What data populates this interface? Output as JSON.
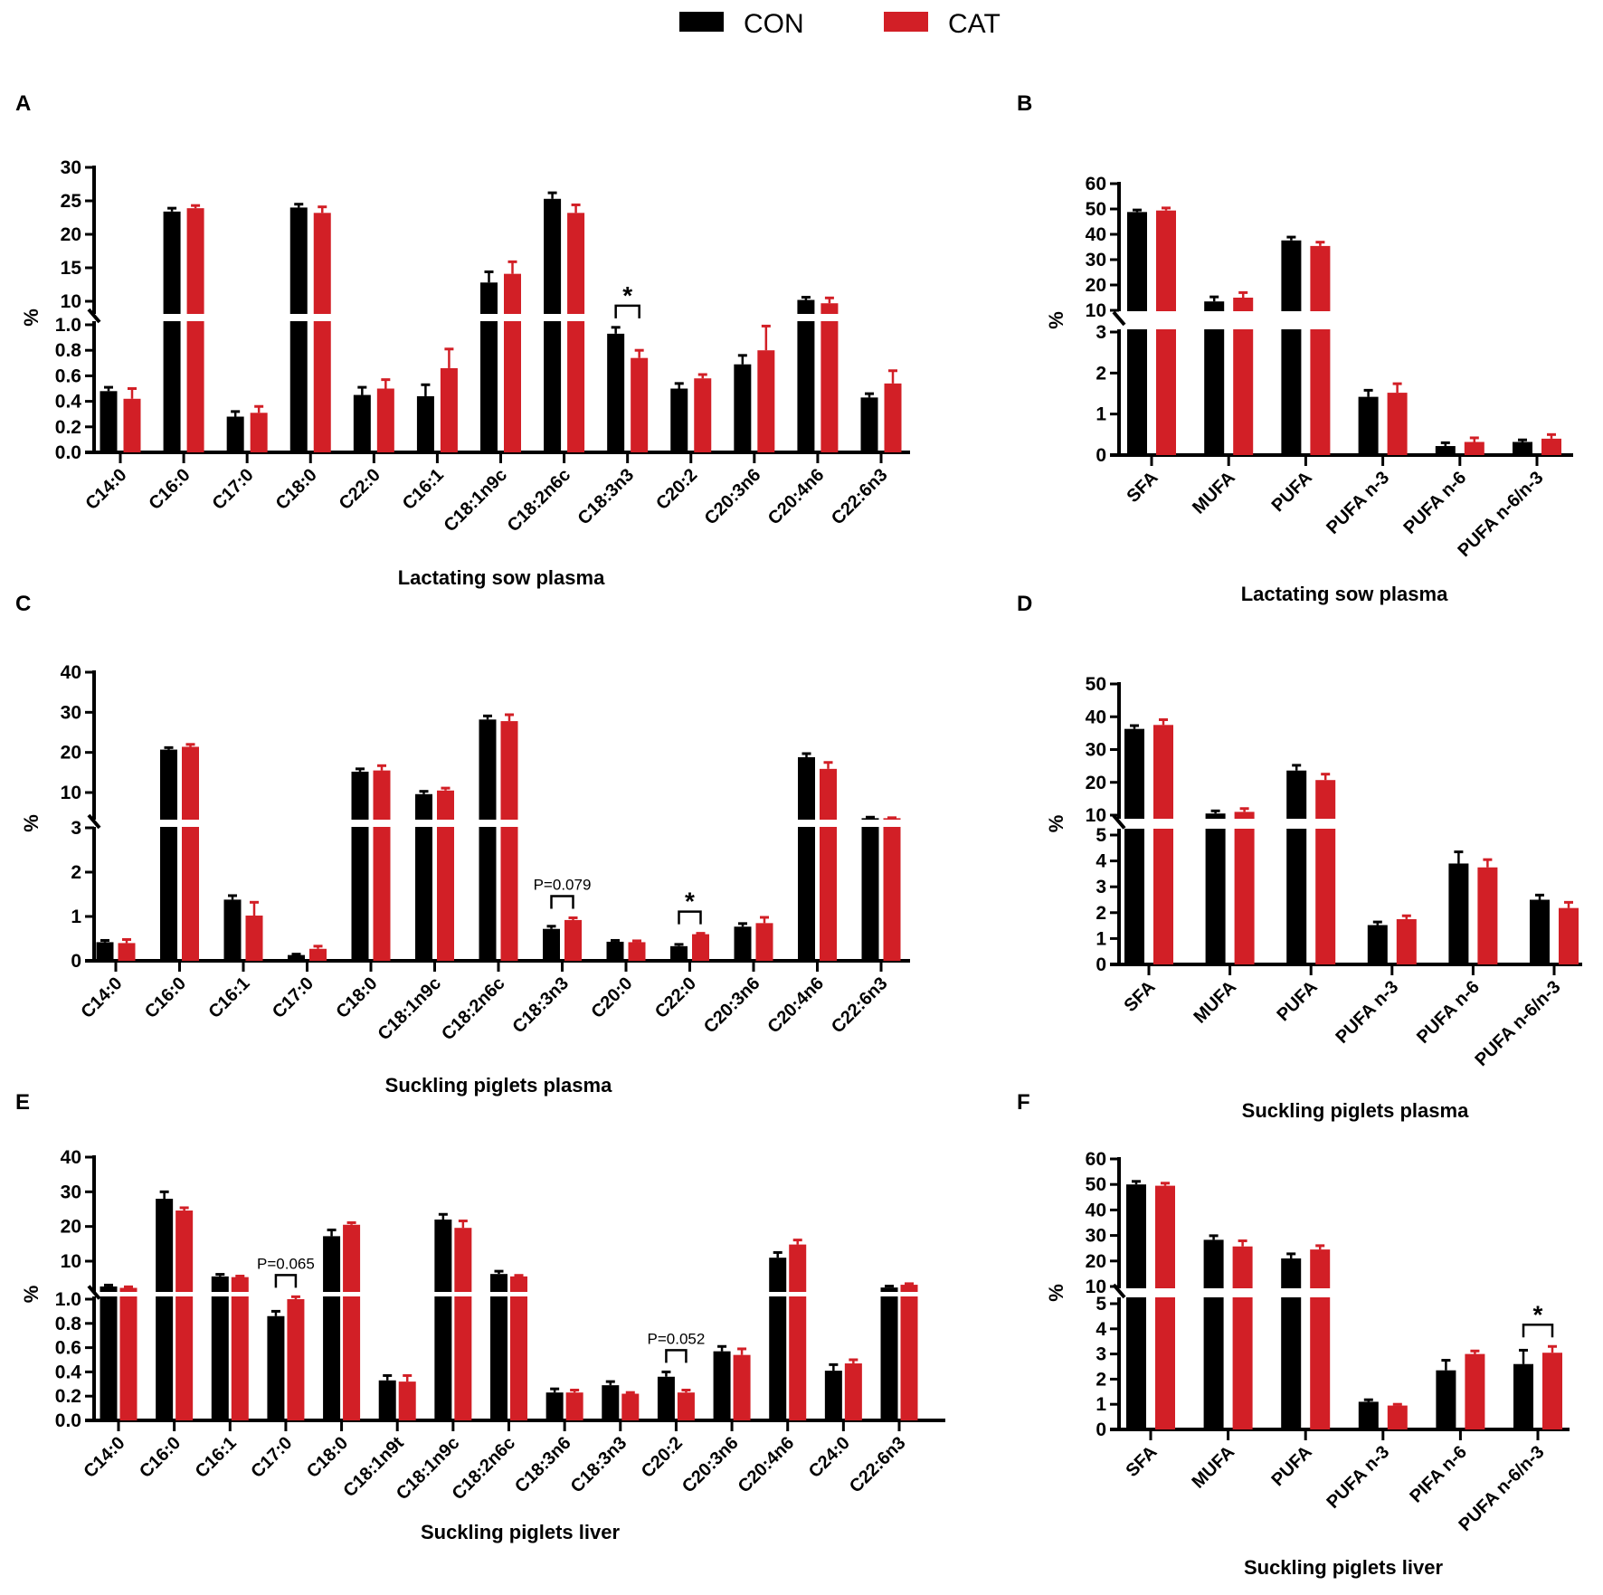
{
  "legend": {
    "con": "CON",
    "cat": "CAT"
  },
  "colors": {
    "con": "#000000",
    "cat": "#d21f26"
  },
  "chart_data": [
    {
      "type": "bar",
      "panel": "A",
      "title": "Lactating sow plasma",
      "ylabel": "%",
      "y_break": true,
      "ylim_lower": [
        0,
        1.0
      ],
      "ylim_upper": [
        10,
        30
      ],
      "yticks_lower": [
        "0.0",
        "0.2",
        "0.4",
        "0.6",
        "0.8",
        "1.0"
      ],
      "yticks_upper": [
        "10",
        "15",
        "20",
        "25",
        "30"
      ],
      "categories": [
        "C14:0",
        "C16:0",
        "C17:0",
        "C18:0",
        "C22:0",
        "C16:1",
        "C18:1n9c",
        "C18:2n6c",
        "C18:3n3",
        "C20:2",
        "C20:3n6",
        "C20:4n6",
        "C22:6n3"
      ],
      "series": [
        {
          "name": "CON",
          "values": [
            0.48,
            23.4,
            0.28,
            24.0,
            0.45,
            0.44,
            12.8,
            25.3,
            0.93,
            0.5,
            0.69,
            10.2,
            0.43
          ],
          "sem": [
            0.03,
            0.5,
            0.04,
            0.5,
            0.06,
            0.09,
            1.6,
            0.9,
            0.05,
            0.04,
            0.07,
            0.4,
            0.03
          ]
        },
        {
          "name": "CAT",
          "values": [
            0.42,
            23.9,
            0.31,
            23.2,
            0.5,
            0.66,
            14.1,
            23.2,
            0.74,
            0.58,
            0.8,
            9.7,
            0.54
          ],
          "sem": [
            0.08,
            0.4,
            0.05,
            0.9,
            0.07,
            0.15,
            1.8,
            1.2,
            0.06,
            0.03,
            0.19,
            0.8,
            0.1
          ]
        }
      ],
      "annotations": [
        {
          "category": "C18:3n3",
          "text": "*"
        }
      ]
    },
    {
      "type": "bar",
      "panel": "B",
      "title": "Lactating sow plasma",
      "ylabel": "%",
      "y_break": true,
      "ylim_lower": [
        0,
        3
      ],
      "ylim_upper": [
        10,
        60
      ],
      "yticks_lower": [
        "0",
        "1",
        "2",
        "3"
      ],
      "yticks_upper": [
        "10",
        "20",
        "30",
        "40",
        "50",
        "60"
      ],
      "categories": [
        "SFA",
        "MUFA",
        "PUFA",
        "PUFA n-3",
        "PUFA n-6",
        "PUFA n-6/n-3"
      ],
      "series": [
        {
          "name": "CON",
          "values": [
            48.8,
            13.5,
            37.6,
            1.42,
            0.22,
            0.32
          ],
          "sem": [
            0.8,
            1.8,
            1.3,
            0.16,
            0.08,
            0.05
          ]
        },
        {
          "name": "CAT",
          "values": [
            49.4,
            15.0,
            35.4,
            1.52,
            0.32,
            0.4
          ],
          "sem": [
            1.0,
            2.0,
            1.5,
            0.22,
            0.1,
            0.1
          ]
        }
      ],
      "annotations": []
    },
    {
      "type": "bar",
      "panel": "C",
      "title": "Suckling piglets plasma",
      "ylabel": "%",
      "y_break": true,
      "ylim_lower": [
        0,
        3
      ],
      "ylim_upper": [
        10,
        40
      ],
      "yticks_lower": [
        "0",
        "1",
        "2",
        "3"
      ],
      "yticks_upper": [
        "10",
        "20",
        "30",
        "40"
      ],
      "categories": [
        "C14:0",
        "C16:0",
        "C16:1",
        "C17:0",
        "C18:0",
        "C18:1n9c",
        "C18:2n6c",
        "C18:3n3",
        "C20:0",
        "C22:0",
        "C20:3n6",
        "C20:4n6",
        "C22:6n3"
      ],
      "series": [
        {
          "name": "CON",
          "values": [
            0.42,
            20.7,
            1.38,
            0.13,
            15.2,
            9.6,
            28.2,
            0.72,
            0.43,
            0.33,
            0.77,
            18.8,
            3.6
          ],
          "sem": [
            0.04,
            0.5,
            0.09,
            0.02,
            0.7,
            0.7,
            0.9,
            0.06,
            0.03,
            0.04,
            0.07,
            0.9,
            0.25
          ]
        },
        {
          "name": "CAT",
          "values": [
            0.4,
            21.4,
            1.02,
            0.27,
            15.5,
            10.5,
            27.8,
            0.92,
            0.42,
            0.6,
            0.85,
            15.9,
            3.6
          ],
          "sem": [
            0.08,
            0.6,
            0.3,
            0.06,
            1.2,
            0.6,
            1.6,
            0.05,
            0.03,
            0.02,
            0.13,
            1.6,
            0.12
          ]
        }
      ],
      "annotations": [
        {
          "category": "C18:3n3",
          "text": "P=0.079"
        },
        {
          "category": "C22:0",
          "text": "*"
        }
      ]
    },
    {
      "type": "bar",
      "panel": "D",
      "title": "Suckling piglets plasma",
      "ylabel": "%",
      "y_break": true,
      "ylim_lower": [
        0,
        5
      ],
      "ylim_upper": [
        10,
        50
      ],
      "yticks_lower": [
        "0",
        "1",
        "2",
        "3",
        "4",
        "5"
      ],
      "yticks_upper": [
        "10",
        "20",
        "30",
        "40",
        "50"
      ],
      "categories": [
        "SFA",
        "MUFA",
        "PUFA",
        "PUFA n-3",
        "PUFA n-6",
        "PUFA n-6/n-3"
      ],
      "series": [
        {
          "name": "CON",
          "values": [
            36.3,
            10.5,
            23.6,
            1.52,
            3.9,
            2.5
          ],
          "sem": [
            1.0,
            0.8,
            1.6,
            0.12,
            0.45,
            0.18
          ]
        },
        {
          "name": "CAT",
          "values": [
            37.5,
            11.0,
            20.7,
            1.75,
            3.75,
            2.18
          ],
          "sem": [
            1.6,
            1.0,
            1.8,
            0.13,
            0.3,
            0.22
          ]
        }
      ],
      "annotations": []
    },
    {
      "type": "bar",
      "panel": "E",
      "title": "Suckling piglets liver",
      "ylabel": "%",
      "y_break": true,
      "ylim_lower": [
        0,
        1.0
      ],
      "ylim_upper": [
        10,
        40
      ],
      "yticks_lower": [
        "0.0",
        "0.2",
        "0.4",
        "0.6",
        "0.8",
        "1.0"
      ],
      "yticks_upper": [
        "10",
        "20",
        "30",
        "40"
      ],
      "categories": [
        "C14:0",
        "C16:0",
        "C16:1",
        "C17:0",
        "C18:0",
        "C18:1n9t",
        "C18:1n9c",
        "C18:2n6c",
        "C18:3n6",
        "C18:3n3",
        "C20:2",
        "C20:3n6",
        "C20:4n6",
        "C24:0",
        "C22:6n3"
      ],
      "series": [
        {
          "name": "CON",
          "values": [
            2.7,
            28.0,
            5.6,
            0.86,
            17.2,
            0.33,
            22.0,
            6.3,
            0.23,
            0.29,
            0.36,
            0.57,
            11.0,
            0.41,
            2.4
          ],
          "sem": [
            0.4,
            2.0,
            0.6,
            0.04,
            1.8,
            0.04,
            1.5,
            0.8,
            0.03,
            0.03,
            0.04,
            0.04,
            1.5,
            0.05,
            0.4
          ]
        },
        {
          "name": "CAT",
          "values": [
            2.3,
            24.6,
            5.4,
            1.0,
            20.5,
            0.32,
            19.6,
            5.6,
            0.23,
            0.22,
            0.23,
            0.54,
            14.8,
            0.47,
            3.2
          ],
          "sem": [
            0.3,
            0.8,
            0.3,
            0.02,
            0.6,
            0.05,
            2.0,
            0.3,
            0.02,
            0.01,
            0.02,
            0.05,
            1.3,
            0.03,
            0.3
          ]
        }
      ],
      "annotations": [
        {
          "category": "C17:0",
          "text": "P=0.065"
        },
        {
          "category": "C20:2",
          "text": "P=0.052"
        }
      ]
    },
    {
      "type": "bar",
      "panel": "F",
      "title": "Suckling piglets liver",
      "ylabel": "%",
      "y_break": true,
      "ylim_lower": [
        0,
        5
      ],
      "ylim_upper": [
        10,
        60
      ],
      "yticks_lower": [
        "0",
        "1",
        "2",
        "3",
        "4",
        "5"
      ],
      "yticks_upper": [
        "10",
        "20",
        "30",
        "40",
        "50",
        "60"
      ],
      "categories": [
        "SFA",
        "MUFA",
        "PUFA",
        "PUFA n-3",
        "PIFA n-6",
        "PUFA n-6/n-3"
      ],
      "series": [
        {
          "name": "CON",
          "values": [
            50.0,
            28.3,
            21.0,
            1.1,
            2.35,
            2.6
          ],
          "sem": [
            1.2,
            1.6,
            1.8,
            0.08,
            0.4,
            0.55
          ]
        },
        {
          "name": "CAT",
          "values": [
            49.5,
            25.7,
            24.5,
            0.95,
            3.0,
            3.05
          ],
          "sem": [
            1.0,
            2.2,
            1.5,
            0.05,
            0.12,
            0.25
          ]
        }
      ],
      "annotations": [
        {
          "category": "PUFA n-6/n-3",
          "text": "*"
        }
      ]
    }
  ]
}
